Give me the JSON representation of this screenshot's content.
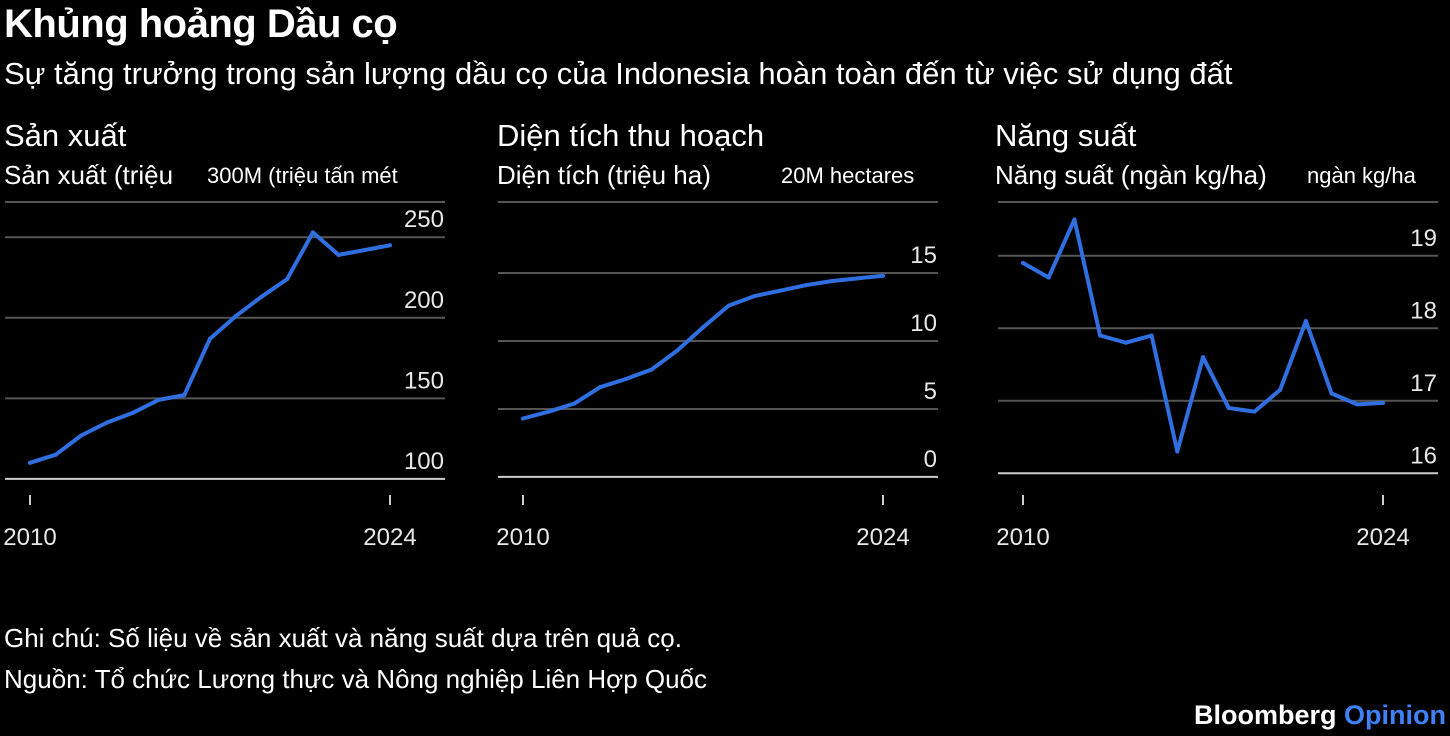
{
  "title": "Khủng hoảng Dầu cọ",
  "subtitle": "Sự tăng trưởng trong sản lượng dầu cọ của Indonesia hoàn toàn đến từ việc sử dụng đất",
  "panels": [
    {
      "title": "Sản xuất",
      "unit": "Sản xuất (triệu",
      "axis_unit": "300M (triệu tấn mét"
    },
    {
      "title": "Diện tích thu hoạch",
      "unit": "Diện tích (triệu ha)",
      "axis_unit": "20M hectares"
    },
    {
      "title": "Năng suất",
      "unit": "Năng suất (ngàn kg/ha)",
      "axis_unit": "ngàn kg/ha"
    }
  ],
  "note": "Ghi chú: Số liệu về sản xuất và năng suất dựa trên quả cọ.",
  "source": "Nguồn: Tổ chức Lương thực và Nông nghiệp Liên Hợp Quốc",
  "brand": {
    "name": "Bloomberg",
    "accent": "Opinion"
  },
  "colors": {
    "line": "#2f6fe0",
    "grid": "#555555",
    "accent": "#3f82f7"
  },
  "chart_data": [
    {
      "type": "line",
      "title": "Sản xuất",
      "ylabel": "Sản xuất (triệu",
      "x": [
        2010,
        2011,
        2012,
        2013,
        2014,
        2015,
        2016,
        2017,
        2018,
        2019,
        2020,
        2021,
        2022,
        2023,
        2024
      ],
      "values": [
        110,
        115,
        127,
        135,
        141,
        149,
        152,
        187,
        201,
        213,
        224,
        253,
        239,
        242,
        245
      ],
      "ylim": [
        90,
        270
      ],
      "yticks": [
        100,
        150,
        200,
        250
      ],
      "ytick_labels": [
        "100",
        "150",
        "200",
        "250"
      ],
      "xticks": [
        2010,
        2024
      ],
      "xtick_labels": [
        "2010",
        "2024"
      ],
      "grid": true
    },
    {
      "type": "line",
      "title": "Diện tích thu hoạch",
      "ylabel": "Diện tích (triệu ha)",
      "x": [
        2010,
        2011,
        2012,
        2013,
        2014,
        2015,
        2016,
        2017,
        2018,
        2019,
        2020,
        2021,
        2022,
        2023,
        2024
      ],
      "values": [
        4.3,
        4.8,
        5.4,
        6.6,
        7.2,
        7.9,
        9.3,
        11.0,
        12.6,
        13.3,
        13.7,
        14.1,
        14.4,
        14.6,
        14.8
      ],
      "ylim": [
        -1.33,
        20
      ],
      "yticks": [
        0,
        5,
        10,
        15
      ],
      "ytick_labels": [
        "0",
        "5",
        "10",
        "15"
      ],
      "xticks": [
        2010,
        2024
      ],
      "xtick_labels": [
        "2010",
        "2024"
      ],
      "grid": true
    },
    {
      "type": "line",
      "title": "Năng suất",
      "ylabel": "Năng suất (ngàn kg/ha)",
      "x": [
        2010,
        2011,
        2012,
        2013,
        2014,
        2015,
        2016,
        2017,
        2018,
        2019,
        2020,
        2021,
        2022,
        2023,
        2024
      ],
      "values": [
        18.9,
        18.7,
        19.5,
        17.9,
        17.8,
        17.9,
        16.3,
        17.6,
        16.9,
        16.85,
        17.15,
        18.1,
        17.1,
        16.95,
        16.97
      ],
      "ylim": [
        15.7,
        19.7
      ],
      "yticks": [
        16,
        17,
        18,
        19
      ],
      "ytick_labels": [
        "16",
        "17",
        "18",
        "19"
      ],
      "xticks": [
        2010,
        2024
      ],
      "xtick_labels": [
        "2010",
        "2024"
      ],
      "grid": true
    }
  ]
}
